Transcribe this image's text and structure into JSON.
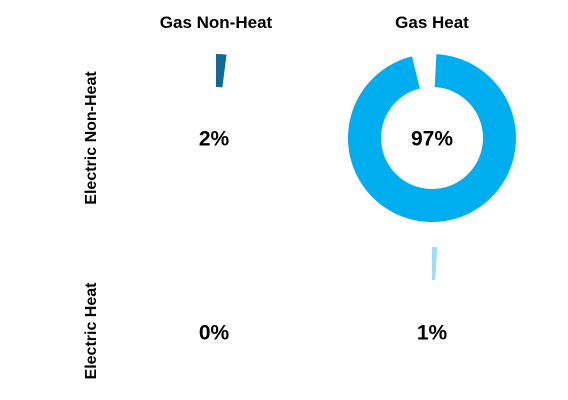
{
  "chart_data": {
    "type": "pie",
    "variant": "donut-matrix",
    "columns": [
      "Gas Non-Heat",
      "Gas Heat"
    ],
    "rows": [
      "Electric Non-Heat",
      "Electric Heat"
    ],
    "cells": [
      {
        "row": 0,
        "col": 0,
        "value": 2,
        "label": "2%",
        "color": "#0f6a96"
      },
      {
        "row": 0,
        "col": 1,
        "value": 97,
        "label": "97%",
        "color": "#00aeef"
      },
      {
        "row": 1,
        "col": 0,
        "value": 0,
        "label": "0%",
        "color": "#0f6a96"
      },
      {
        "row": 1,
        "col": 1,
        "value": 1,
        "label": "1%",
        "color": "#9edcf7"
      }
    ]
  }
}
